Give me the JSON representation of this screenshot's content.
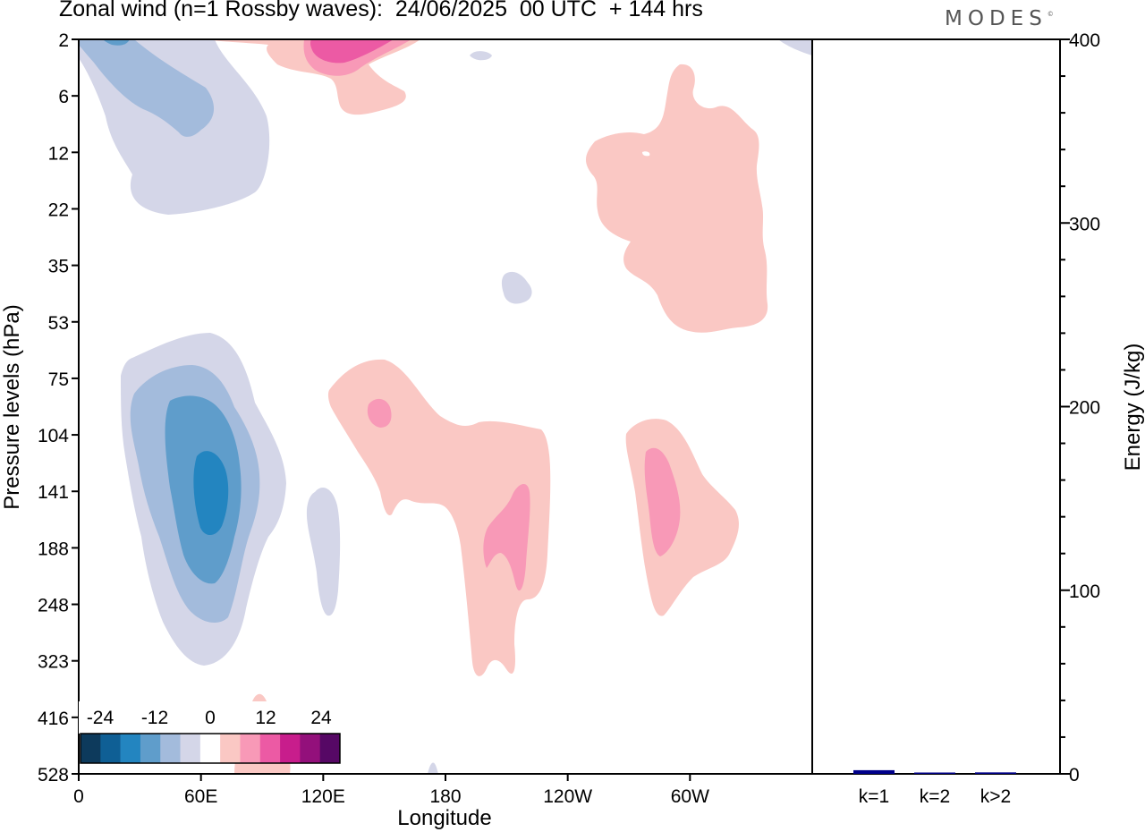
{
  "title": "Zonal wind (n=1 Rossby waves):  24/06/2025  00 UTC  + 144 hrs",
  "logo": "MODES",
  "logo_mark": "©",
  "chart_data": [
    {
      "type": "heatmap",
      "xlabel": "Longitude",
      "ylabel": "Pressure levels (hPa)",
      "x_ticks": [
        "0",
        "60E",
        "120E",
        "180",
        "120W",
        "60W"
      ],
      "y_ticks": [
        "2",
        "6",
        "12",
        "22",
        "35",
        "53",
        "75",
        "104",
        "141",
        "188",
        "248",
        "323",
        "416",
        "528"
      ],
      "colorbar": {
        "labels": [
          "-24",
          "-12",
          "0",
          "12",
          "24"
        ],
        "levels": [
          -30,
          -25,
          -20,
          -15,
          -10,
          -5,
          0,
          5,
          10,
          15,
          20,
          25,
          30
        ],
        "colors": [
          "#0d3a5c",
          "#0f5f95",
          "#2385c0",
          "#5f9dcb",
          "#a3bbdc",
          "#d4d6e8",
          "#ffffff",
          "#fac8c4",
          "#f899b7",
          "#ec5aa4",
          "#c81d8c",
          "#93107b",
          "#560865"
        ]
      }
    },
    {
      "type": "bar",
      "ylabel": "Energy (J/kg)",
      "ylim": [
        0,
        400
      ],
      "y_ticks": [
        "0",
        "100",
        "200",
        "300",
        "400"
      ],
      "categories": [
        "k=1",
        "k=2",
        "k>2"
      ],
      "values": [
        2,
        0.5,
        0.8
      ],
      "bar_color": "#00008b"
    }
  ]
}
